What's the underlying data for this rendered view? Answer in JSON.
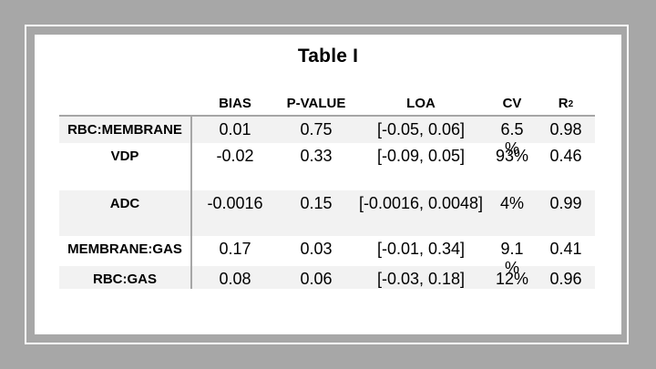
{
  "slide": {
    "title": "Table I"
  },
  "table": {
    "headers": {
      "label": "",
      "bias": "BIAS",
      "p_value": "P-VALUE",
      "loa": "LOA",
      "cv": "CV",
      "r2_base": "R",
      "r2_sup": "2"
    },
    "rows": [
      {
        "label": "RBC:MEMBRANE",
        "bias": "0.01",
        "p_value": "0.75",
        "loa": "[-0.05, 0.06]",
        "cv": "6.5\n%",
        "r2": "0.98"
      },
      {
        "label": "VDP",
        "bias": "-0.02",
        "p_value": "0.33",
        "loa": "[-0.09, 0.05]",
        "cv": "93%",
        "r2": "0.46"
      },
      {
        "label": "ADC",
        "bias": "-0.0016",
        "p_value": "0.15",
        "loa": "[-0.0016, 0.0048]",
        "cv": "4%",
        "r2": "0.99"
      },
      {
        "label": "MEMBRANE:GAS",
        "bias": "0.17",
        "p_value": "0.03",
        "loa": "[-0.01, 0.34]",
        "cv": "9.1\n%",
        "r2": "0.41"
      },
      {
        "label": "RBC:GAS",
        "bias": "0.08",
        "p_value": "0.06",
        "loa": "[-0.03, 0.18]",
        "cv": "12%",
        "r2": "0.96"
      }
    ]
  },
  "chart_data": {
    "type": "table",
    "title": "Table I",
    "columns": [
      "",
      "BIAS",
      "P-VALUE",
      "LOA",
      "CV",
      "R2"
    ],
    "rows": [
      [
        "RBC:MEMBRANE",
        "0.01",
        "0.75",
        "[-0.05, 0.06]",
        "6.5 %",
        "0.98"
      ],
      [
        "VDP",
        "-0.02",
        "0.33",
        "[-0.09, 0.05]",
        "93%",
        "0.46"
      ],
      [
        "ADC",
        "-0.0016",
        "0.15",
        "[-0.0016, 0.0048]",
        "4%",
        "0.99"
      ],
      [
        "MEMBRANE:GAS",
        "0.17",
        "0.03",
        "[-0.01, 0.34]",
        "9.1 %",
        "0.41"
      ],
      [
        "RBC:GAS",
        "0.08",
        "0.06",
        "[-0.03, 0.18]",
        "12%",
        "0.96"
      ]
    ]
  },
  "colors": {
    "background_gray": "#a7a7a7",
    "frame_line": "#ffffff",
    "content_background": "#ffffff",
    "shaded_row": "#f2f2f2",
    "table_lines": "#a6a6a6",
    "text": "#000000"
  }
}
